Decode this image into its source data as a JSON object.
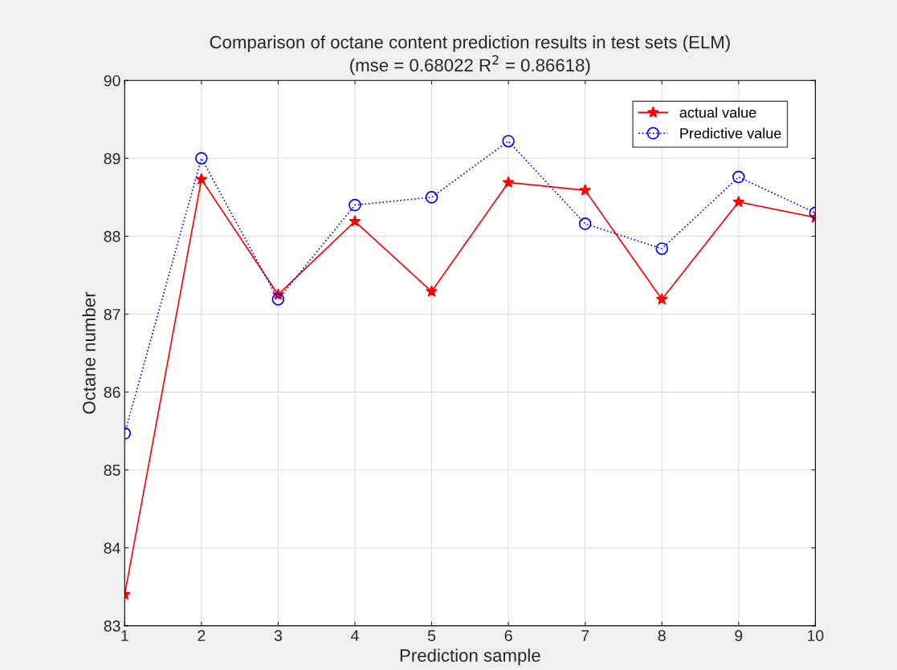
{
  "chart_data": {
    "type": "line",
    "title": "Comparison of octane content prediction results in test sets (ELM)\n(mse = 0.68022 R$^{2}$ = 0.86618)",
    "xlabel": "Prediction sample",
    "ylabel": "Octane number",
    "x": [
      1,
      2,
      3,
      4,
      5,
      6,
      7,
      8,
      9,
      10
    ],
    "series": [
      {
        "name": "actual value",
        "color": "#ff0000",
        "marker": "star",
        "line_style": "solid",
        "values": [
          83.4,
          88.73,
          87.25,
          88.19,
          87.29,
          88.69,
          88.59,
          87.19,
          88.44,
          88.24
        ]
      },
      {
        "name": "Predictive value",
        "color": "#0000ff",
        "marker": "circle",
        "line_style": "dotted",
        "values": [
          85.47,
          89.0,
          87.19,
          88.4,
          88.5,
          89.22,
          88.16,
          87.84,
          88.76,
          88.3
        ]
      }
    ],
    "xlim": [
      1,
      10
    ],
    "xticks": [
      1,
      2,
      3,
      4,
      5,
      6,
      7,
      8,
      9,
      10
    ],
    "ylim": [
      83,
      90
    ],
    "yticks": [
      83,
      84,
      85,
      86,
      87,
      88,
      89,
      90
    ],
    "grid": true,
    "legend": "top right"
  }
}
